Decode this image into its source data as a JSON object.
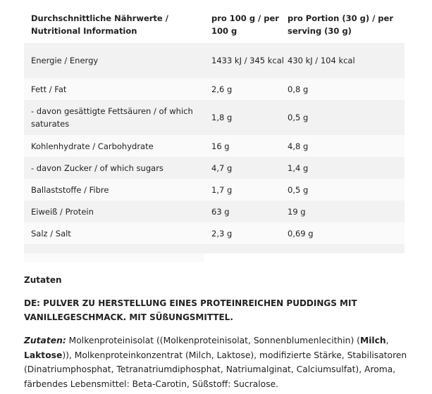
{
  "table": {
    "headers": [
      "Durchschnittliche Nährwerte / Nutritional Information",
      "pro 100 g / per 100 g",
      "pro Portion (30 g) / per serving (30 g)"
    ],
    "rows": [
      [
        "Energie / Energy",
        "1433 kJ / 345 kcal",
        "430 kJ / 104 kcal"
      ],
      [
        "Fett / Fat",
        "2,6 g",
        "0,8 g"
      ],
      [
        "- davon gesättigte Fettsäuren / of which saturates",
        "1,8 g",
        "0,5 g"
      ],
      [
        "Kohlenhydrate / Carbohydrate",
        "16 g",
        "4,8 g"
      ],
      [
        "- davon Zucker / of which sugars",
        "4,7 g",
        "1,4 g"
      ],
      [
        "Ballaststoffe / Fibre",
        "1,7 g",
        "0,5 g"
      ],
      [
        "Eiweiß / Protein",
        "63 g",
        "19 g"
      ],
      [
        "Salz / Salt",
        "2,3 g",
        "0,69 g"
      ]
    ]
  },
  "ingredients": {
    "heading": "Zutaten",
    "description": "DE: PULVER ZU HERSTELLUNG EINES PROTEINREICHEN PUDDINGS MIT VANILLEGESCHMACK. MIT SÜßUNGSMITTEL.",
    "label": "Zutaten:",
    "text1": " Molkenproteinisolat ((Molkenproteinisolat, Sonnenblumenlecithin) (",
    "allergen1": "Milch",
    "text2": ", ",
    "allergen2": "Laktose",
    "text3": ")), Molkenproteinkonzentrat (Milch, Laktose), modifizierte Stärke, Stabilisatoren (Dinatriumphosphat, Tetranatriumdiphosphat, Natriumalginat, Calciumsulfat), Aroma, färbendes Lebensmittel: Beta-Carotin, Süßstoff: Sucralose."
  }
}
